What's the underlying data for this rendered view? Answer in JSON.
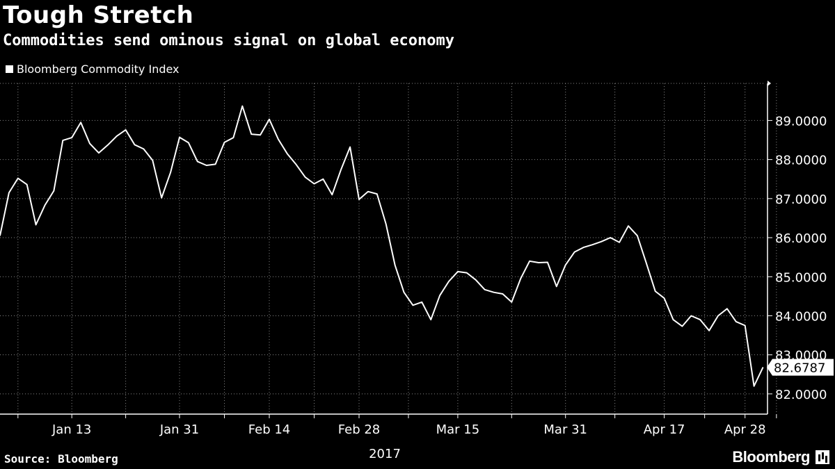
{
  "header": {
    "title": "Tough Stretch",
    "subtitle": "Commodities send ominous signal on global economy"
  },
  "footer": {
    "source": "Source: Bloomberg",
    "brand": "Bloomberg",
    "brand_icon": "bloomberg-terminal-icon"
  },
  "colors": {
    "background": "#000000",
    "line": "#ffffff",
    "grid": "#888888"
  },
  "chart_data": {
    "type": "line",
    "title": "Tough Stretch",
    "subtitle": "Commodities send ominous signal on global economy",
    "legend": [
      "Bloomberg Commodity Index"
    ],
    "legend_position": "top-left",
    "grid": true,
    "x_year_label": "2017",
    "xlabel": "",
    "ylabel": "",
    "ylim": [
      81.5,
      89.95
    ],
    "y_ticks": [
      82,
      83,
      84,
      85,
      86,
      87,
      88,
      89
    ],
    "y_tick_labels": [
      "82.0000",
      "83.0000",
      "84.0000",
      "85.0000",
      "86.0000",
      "87.0000",
      "88.0000",
      "89.0000"
    ],
    "x_ticks": [
      {
        "label": "Jan 13",
        "index": 8
      },
      {
        "label": "Jan 31",
        "index": 20
      },
      {
        "label": "Feb 14",
        "index": 30
      },
      {
        "label": "Feb 28",
        "index": 40
      },
      {
        "label": "Mar 15",
        "index": 51
      },
      {
        "label": "Mar 31",
        "index": 63
      },
      {
        "label": "Apr 17",
        "index": 74
      },
      {
        "label": "Apr 28",
        "index": 83
      }
    ],
    "last_value_label": "82.6787",
    "series": [
      {
        "name": "Bloomberg Commodity Index",
        "values": [
          86.05,
          87.15,
          87.52,
          87.36,
          86.33,
          86.83,
          87.2,
          88.49,
          88.56,
          88.95,
          88.41,
          88.17,
          88.37,
          88.6,
          88.76,
          88.38,
          88.27,
          87.98,
          87.02,
          87.67,
          88.57,
          88.43,
          87.95,
          87.85,
          87.88,
          88.44,
          88.56,
          89.37,
          88.65,
          88.63,
          89.03,
          88.52,
          88.15,
          87.87,
          87.55,
          87.38,
          87.5,
          87.1,
          87.75,
          88.32,
          86.98,
          87.18,
          87.12,
          86.35,
          85.3,
          84.6,
          84.27,
          84.35,
          83.9,
          84.52,
          84.88,
          85.13,
          85.1,
          84.92,
          84.67,
          84.6,
          84.56,
          84.35,
          84.95,
          85.4,
          85.36,
          85.37,
          84.75,
          85.3,
          85.63,
          85.75,
          85.82,
          85.9,
          86.0,
          85.88,
          86.3,
          86.05,
          85.35,
          84.63,
          84.45,
          83.9,
          83.73,
          84.0,
          83.9,
          83.62,
          84.0,
          84.18,
          83.85,
          83.75,
          82.2,
          82.68
        ]
      }
    ]
  }
}
